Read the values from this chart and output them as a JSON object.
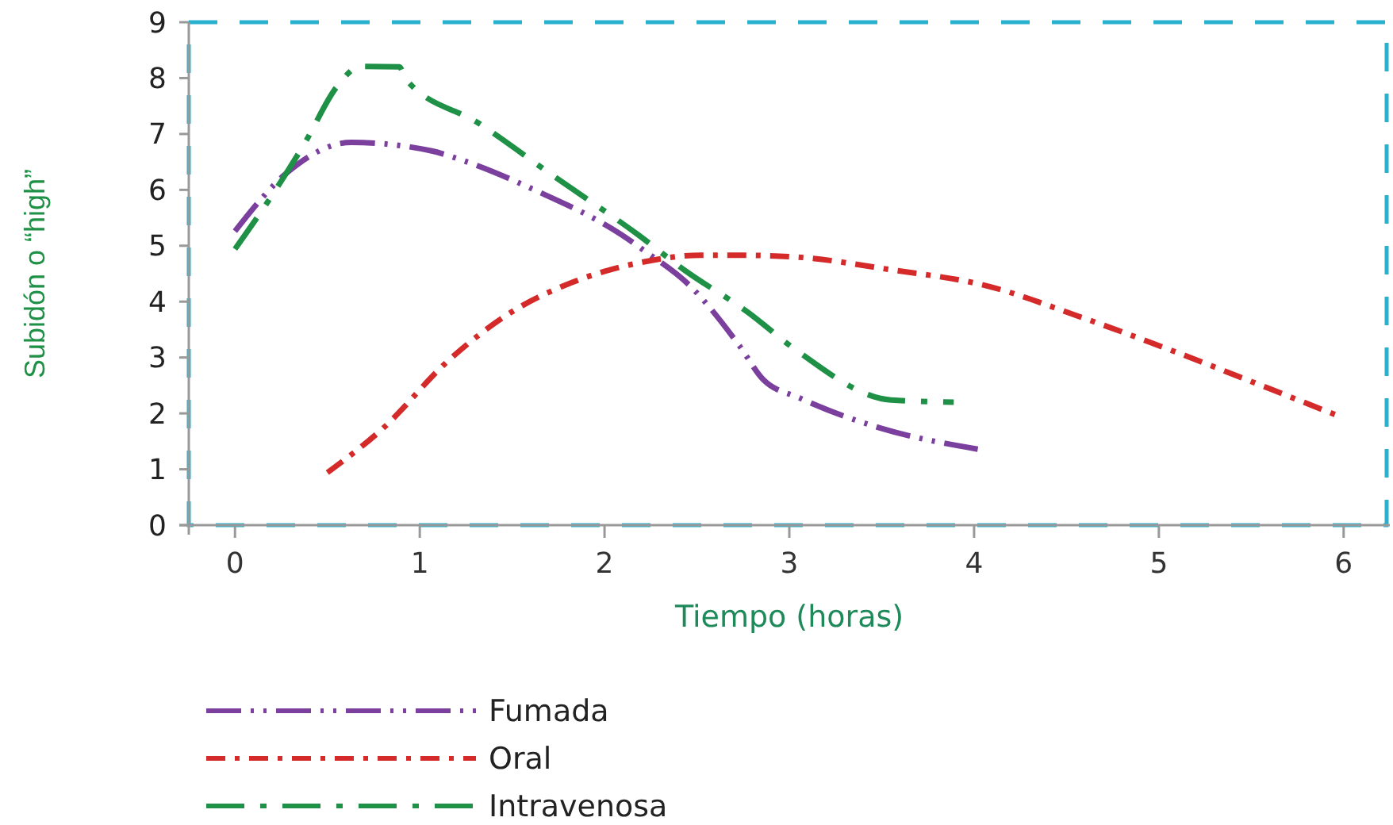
{
  "chart_data": {
    "type": "line",
    "xlabel": "Tiempo (horas)",
    "ylabel": "Subidón o “high”",
    "xlim": [
      -0.25,
      6.25
    ],
    "ylim": [
      0,
      9
    ],
    "xticks": [
      0,
      1,
      2,
      3,
      4,
      5,
      6
    ],
    "yticks": [
      0,
      1,
      2,
      3,
      4,
      5,
      6,
      7,
      8,
      9
    ],
    "legend": "bottom",
    "line_style": "dashed",
    "series": [
      {
        "name": "Fumada",
        "color": "#7b3f9e",
        "x": [
          0,
          0.29,
          0.63,
          1.06,
          1.23,
          1.62,
          2.09,
          2.22,
          2.46,
          2.73,
          2.86,
          3.06,
          3.5,
          4.02
        ],
        "values": [
          5.26,
          6.33,
          6.85,
          6.7,
          6.53,
          6,
          5.2,
          4.9,
          4.29,
          3.21,
          2.6,
          2.27,
          1.73,
          1.36
        ]
      },
      {
        "name": "Oral",
        "color": "#d42a2a",
        "x": [
          0.5,
          0.8,
          1.15,
          1.49,
          1.83,
          2.18,
          2.52,
          2.73,
          3.03,
          3.55,
          4.06,
          4.58,
          5.09,
          5.6,
          5.99
        ],
        "values": [
          0.94,
          1.73,
          2.93,
          3.8,
          4.35,
          4.69,
          4.83,
          4.83,
          4.8,
          4.57,
          4.29,
          3.72,
          3.1,
          2.44,
          1.93
        ]
      },
      {
        "name": "Intravenosa",
        "color": "#1e9146",
        "x": [
          0,
          0.16,
          0.38,
          0.55,
          0.68,
          0.89,
          0.92,
          1.32,
          1.71,
          2.18,
          2.43,
          2.78,
          3.03,
          3.55,
          3.89
        ],
        "values": [
          4.94,
          5.7,
          6.85,
          7.84,
          8.21,
          8.2,
          8,
          7.19,
          6.28,
          5.2,
          4.57,
          3.8,
          3.15,
          2.24,
          2.2
        ]
      }
    ]
  }
}
